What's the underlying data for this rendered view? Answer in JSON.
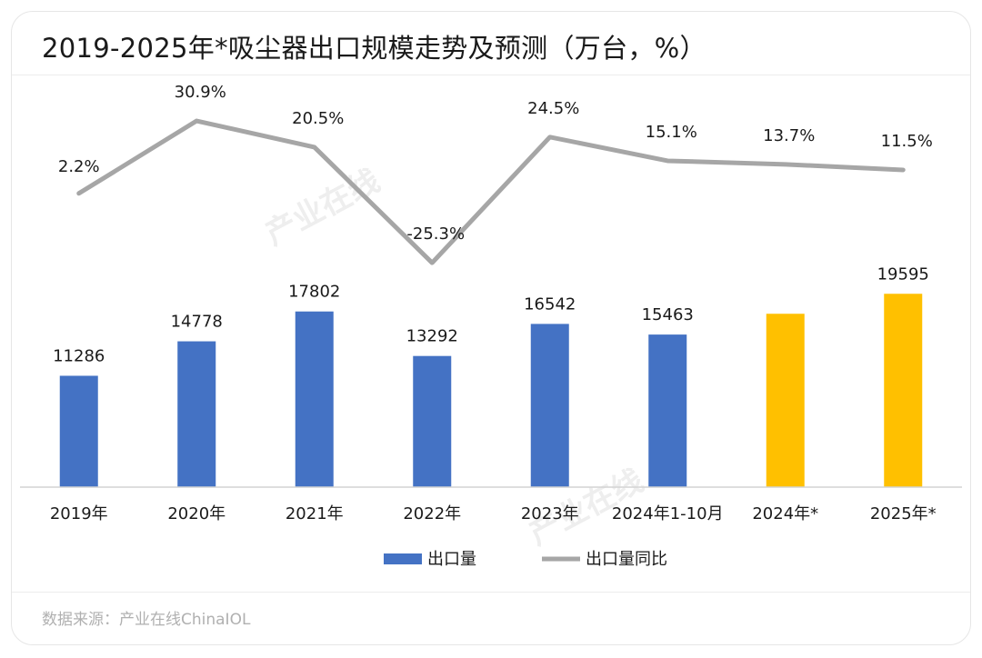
{
  "title": "2019-2025年*吸尘器出口规模走势及预测（万台，%）",
  "source": "数据来源：产业在线ChinaIOL",
  "watermark": "产业在线",
  "colors": {
    "actual": "#4472c4",
    "forecast": "#ffc000",
    "line": "#a6a6a6"
  },
  "chart_data": {
    "type": "bar",
    "categories": [
      "2019年",
      "2020年",
      "2021年",
      "2022年",
      "2023年",
      "2024年1-10月",
      "2024年*",
      "2025年*"
    ],
    "series": [
      {
        "name": "出口量",
        "type": "bar",
        "values": [
          11286,
          14778,
          17802,
          13292,
          16542,
          15463,
          17570,
          19595
        ],
        "labels": [
          "11286",
          "14778",
          "17802",
          "13292",
          "16542",
          "15463",
          "",
          "19595"
        ],
        "forecast": [
          false,
          false,
          false,
          false,
          false,
          false,
          true,
          true
        ]
      },
      {
        "name": "出口量同比",
        "type": "line",
        "values": [
          2.2,
          30.9,
          20.5,
          -25.3,
          24.5,
          15.1,
          13.7,
          11.5
        ],
        "labels": [
          "2.2%",
          "30.9%",
          "20.5%",
          "-25.3%",
          "24.5%",
          "15.1%",
          "13.7%",
          "11.5%"
        ]
      }
    ],
    "legend": [
      "出口量",
      "出口量同比"
    ],
    "legend_position": "bottom",
    "bar_ylim": [
      0,
      35000
    ],
    "line_ylim": [
      -40,
      50
    ],
    "grid": false
  }
}
